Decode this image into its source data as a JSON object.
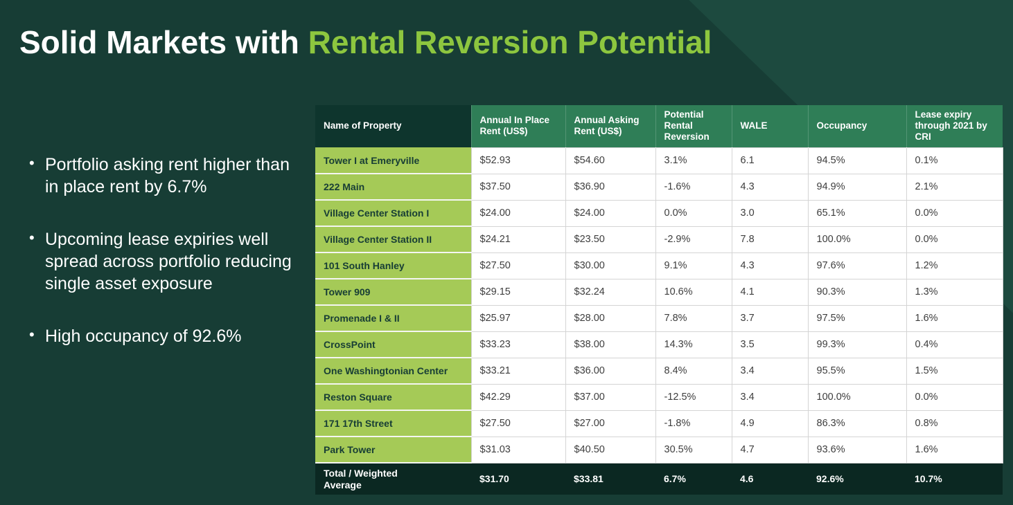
{
  "slide": {
    "title_white": "Solid Markets with ",
    "title_green": "Rental Reversion Potential",
    "bullets": [
      "Portfolio asking rent higher than in place rent by 6.7%",
      "Upcoming lease expiries well spread across portfolio reducing single asset exposure",
      "High occupancy of 92.6%"
    ]
  },
  "colors": {
    "background": "#173d35",
    "background_accent": "#1d4a3f",
    "title_green": "#8dc63f",
    "header_green": "#2f7e57",
    "header_dark": "#0e352d",
    "property_cell_green": "#a5ca57",
    "total_row_dark": "#0b2822"
  },
  "table": {
    "columns": [
      "Name of Property",
      "Annual In Place Rent (US$)",
      "Annual Asking Rent (US$)",
      "Potential Rental Reversion",
      "WALE",
      "Occupancy",
      "Lease expiry through 2021 by CRI"
    ],
    "rows": [
      {
        "name": "Tower I at Emeryville",
        "values": [
          "$52.93",
          "$54.60",
          "3.1%",
          "6.1",
          "94.5%",
          "0.1%"
        ]
      },
      {
        "name": "222 Main",
        "values": [
          "$37.50",
          "$36.90",
          "-1.6%",
          "4.3",
          "94.9%",
          "2.1%"
        ]
      },
      {
        "name": "Village Center Station I",
        "values": [
          "$24.00",
          "$24.00",
          "0.0%",
          "3.0",
          "65.1%",
          "0.0%"
        ]
      },
      {
        "name": "Village Center Station II",
        "values": [
          "$24.21",
          "$23.50",
          "-2.9%",
          "7.8",
          "100.0%",
          "0.0%"
        ]
      },
      {
        "name": "101 South Hanley",
        "values": [
          "$27.50",
          "$30.00",
          "9.1%",
          "4.3",
          "97.6%",
          "1.2%"
        ]
      },
      {
        "name": "Tower 909",
        "values": [
          "$29.15",
          "$32.24",
          "10.6%",
          "4.1",
          "90.3%",
          "1.3%"
        ]
      },
      {
        "name": "Promenade I & II",
        "values": [
          "$25.97",
          "$28.00",
          "7.8%",
          "3.7",
          "97.5%",
          "1.6%"
        ]
      },
      {
        "name": "CrossPoint",
        "values": [
          "$33.23",
          "$38.00",
          "14.3%",
          "3.5",
          "99.3%",
          "0.4%"
        ]
      },
      {
        "name": "One Washingtonian Center",
        "values": [
          "$33.21",
          "$36.00",
          "8.4%",
          "3.4",
          "95.5%",
          "1.5%"
        ]
      },
      {
        "name": "Reston Square",
        "values": [
          "$42.29",
          "$37.00",
          "-12.5%",
          "3.4",
          "100.0%",
          "0.0%"
        ]
      },
      {
        "name": "171 17th Street",
        "values": [
          "$27.50",
          "$27.00",
          "-1.8%",
          "4.9",
          "86.3%",
          "0.8%"
        ]
      },
      {
        "name": "Park Tower",
        "values": [
          "$31.03",
          "$40.50",
          "30.5%",
          "4.7",
          "93.6%",
          "1.6%"
        ]
      }
    ],
    "total": {
      "name": "Total / Weighted Average",
      "values": [
        "$31.70",
        "$33.81",
        "6.7%",
        "4.6",
        "92.6%",
        "10.7%"
      ]
    }
  }
}
